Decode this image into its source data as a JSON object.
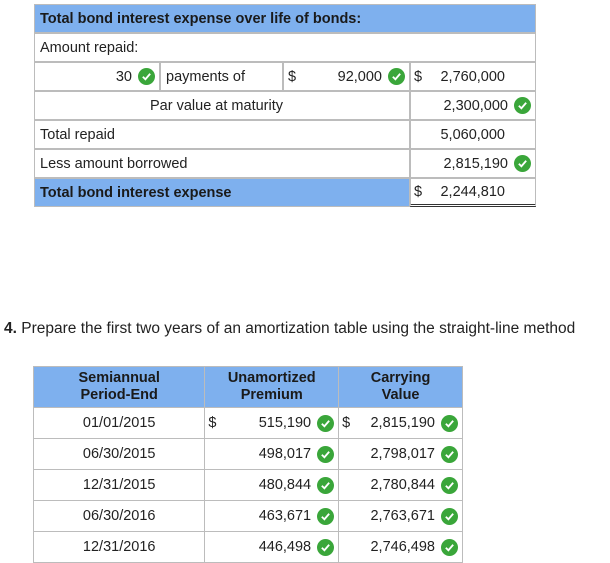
{
  "bond_interest": {
    "title": "Total bond interest expense over life of bonds:",
    "amount_repaid_label": "Amount repaid:",
    "payments_count": "30",
    "payments_of_label": "payments of",
    "currency": "$",
    "payment_amount": "92,000",
    "payments_total": "2,760,000",
    "par_label": "Par value at maturity",
    "par_value": "2,300,000",
    "total_repaid_label": "Total repaid",
    "total_repaid": "5,060,000",
    "less_borrowed_label": "Less amount borrowed",
    "amount_borrowed": "2,815,190",
    "total_expense_label": "Total bond interest expense",
    "total_expense": "2,244,810"
  },
  "question": {
    "number": "4.",
    "text": "Prepare the first two years of an amortization table using the straight-line method"
  },
  "amortization": {
    "headers": {
      "period_line1": "Semiannual",
      "period_line2": "Period-End",
      "premium_line1": "Unamortized",
      "premium_line2": "Premium",
      "carrying_line1": "Carrying",
      "carrying_line2": "Value"
    },
    "currency": "$",
    "rows": [
      {
        "date": "01/01/2015",
        "premium": "515,190",
        "carrying": "2,815,190"
      },
      {
        "date": "06/30/2015",
        "premium": "498,017",
        "carrying": "2,798,017"
      },
      {
        "date": "12/31/2015",
        "premium": "480,844",
        "carrying": "2,780,844"
      },
      {
        "date": "06/30/2016",
        "premium": "463,671",
        "carrying": "2,763,671"
      },
      {
        "date": "12/31/2016",
        "premium": "446,498",
        "carrying": "2,746,498"
      }
    ]
  }
}
